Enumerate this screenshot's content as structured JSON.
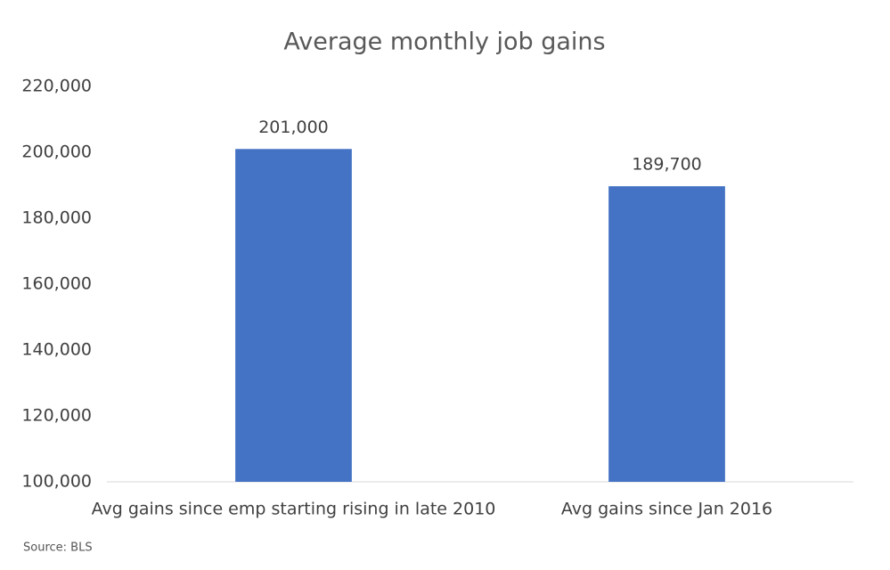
{
  "chart_data": {
    "type": "bar",
    "title": "Average monthly job gains",
    "categories": [
      "Avg gains since emp starting rising in late 2010",
      "Avg gains since Jan 2016"
    ],
    "values": [
      201000,
      189700
    ],
    "value_labels": [
      "201,000",
      "189,700"
    ],
    "color": "#4472c4",
    "ylim": [
      100000,
      220000
    ],
    "yticks": [
      {
        "value": 100000,
        "label": "100,000"
      },
      {
        "value": 120000,
        "label": "120,000"
      },
      {
        "value": 140000,
        "label": "140,000"
      },
      {
        "value": 160000,
        "label": "160,000"
      },
      {
        "value": 180000,
        "label": "180,000"
      },
      {
        "value": 200000,
        "label": "200,000"
      },
      {
        "value": 220000,
        "label": "220,000"
      }
    ],
    "grid": false,
    "source": "Source: BLS"
  }
}
